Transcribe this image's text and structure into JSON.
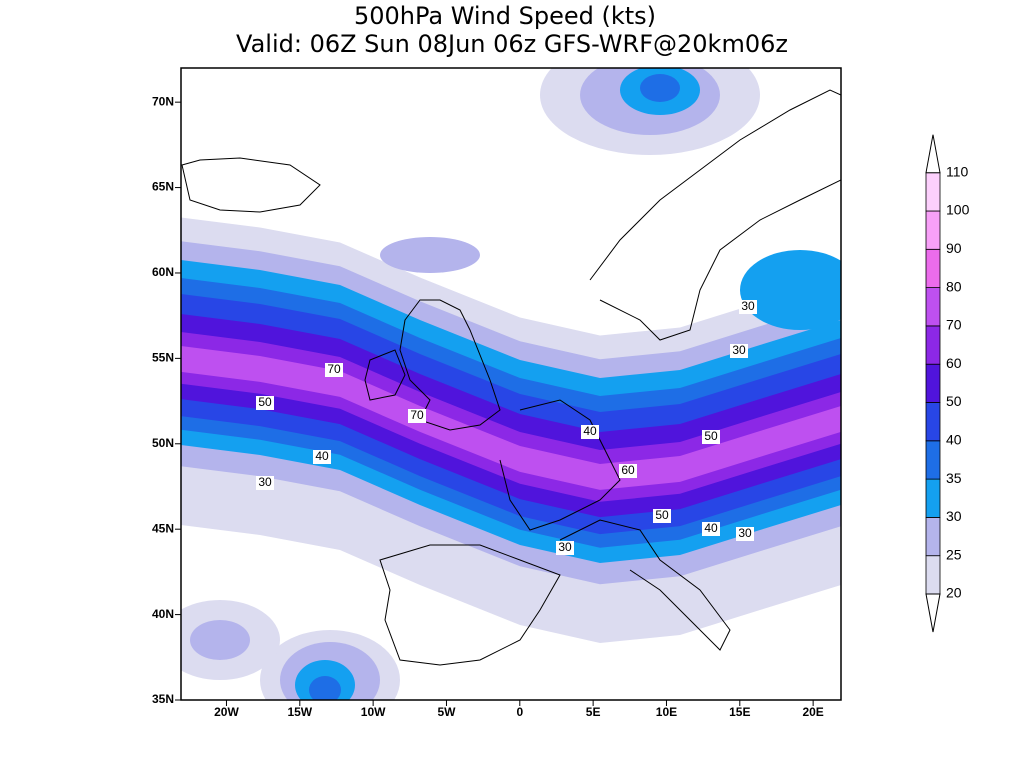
{
  "map": {
    "title": "500hPa Wind Speed (kts)",
    "subtitle": "Valid: 06Z Sun 08Jun 06z GFS-WRF@20km06z",
    "xlim": [
      -23.1,
      21.9
    ],
    "ylim": [
      35,
      72
    ],
    "xticks": [
      {
        "value": -20,
        "label": "20W"
      },
      {
        "value": -15,
        "label": "15W"
      },
      {
        "value": -10,
        "label": "10W"
      },
      {
        "value": -5,
        "label": "5W"
      },
      0,
      {
        "value": 5,
        "label": "5E"
      },
      {
        "value": 10,
        "label": "10E"
      },
      {
        "value": 15,
        "label": "15E"
      },
      {
        "value": 20,
        "label": "20E"
      }
    ],
    "yticks": [
      {
        "value": 35,
        "label": "35N"
      },
      {
        "value": 40,
        "label": "40N"
      },
      {
        "value": 45,
        "label": "45N"
      },
      {
        "value": 50,
        "label": "50N"
      },
      {
        "value": 55,
        "label": "55N"
      },
      {
        "value": 60,
        "label": "60N"
      },
      {
        "value": 65,
        "label": "65N"
      },
      {
        "value": 70,
        "label": "70N"
      }
    ],
    "levels": [
      20,
      25,
      30,
      35,
      40,
      50,
      60,
      70,
      80,
      90,
      100,
      110
    ],
    "colors": [
      "#dcdcf0",
      "#b4b4ec",
      "#14a0f0",
      "#1e6ee6",
      "#2846e6",
      "#5014dc",
      "#8c28e6",
      "#be50f0",
      "#ec6cec",
      "#f8a0f8",
      "#fcd0fc"
    ],
    "contour_labels": [
      "70",
      "70",
      "50",
      "40",
      "30",
      "40",
      "50",
      "60",
      "50",
      "40",
      "30",
      "30",
      "30",
      "30"
    ]
  }
}
